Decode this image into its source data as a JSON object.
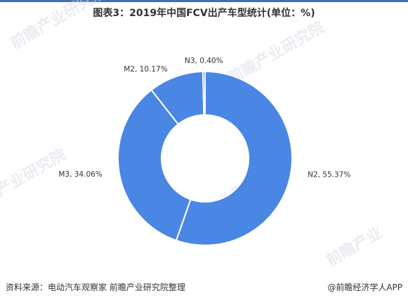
{
  "title": "图表3：2019年中国FCV出产车型统计(单位：%)",
  "footer": {
    "source": "资料来源：电动汽车观察家 前瞻产业研究院整理",
    "brand": "@前瞻经济学人APP"
  },
  "colors": {
    "segment": "#4a86e4",
    "segment_stroke": "#ffffff",
    "accent": "#3f6fb5"
  },
  "chart_data": {
    "type": "pie",
    "donut": true,
    "labels": [
      "N2",
      "M3",
      "M2",
      "N3"
    ],
    "values": [
      55.37,
      34.06,
      10.17,
      0.4
    ],
    "slice_labels": [
      "N2, 55.37%",
      "M3, 34.06%",
      "M2, 10.17%",
      "N3, 0.40%"
    ]
  }
}
